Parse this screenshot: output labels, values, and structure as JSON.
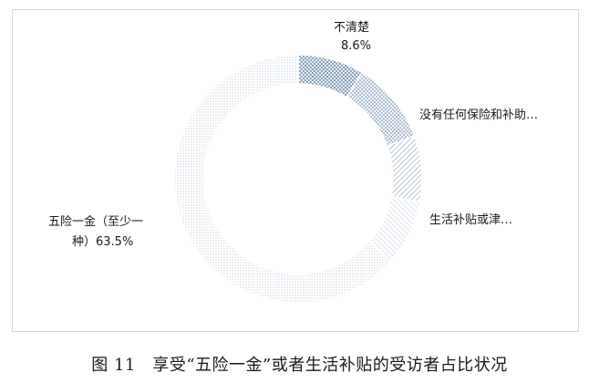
{
  "chart_data": {
    "type": "pie",
    "variant": "donut",
    "title": "",
    "categories": [
      "不清楚",
      "没有任何保险和补助…",
      "生活补贴或津…",
      "",
      "五险一金（至少一种）"
    ],
    "values": [
      8.6,
      10.8,
      8.6,
      8.5,
      63.5
    ],
    "labels": [
      {
        "lines": [
          "不清楚",
          "8.6%"
        ]
      },
      {
        "lines": [
          "没有任何保险和补助…"
        ]
      },
      {
        "lines": [
          "生活补贴或津…"
        ]
      },
      null,
      {
        "lines": [
          "五险一金（至少一",
          "种）63.5%"
        ]
      }
    ],
    "colors": [
      "#4a6f95",
      "#5f7f9f",
      "#8aa3bc",
      "#b8c7d6",
      "#c6d2de"
    ],
    "legend": "none"
  },
  "caption": "图 11　享受“五险一金”或者生活补贴的受访者占比状况"
}
